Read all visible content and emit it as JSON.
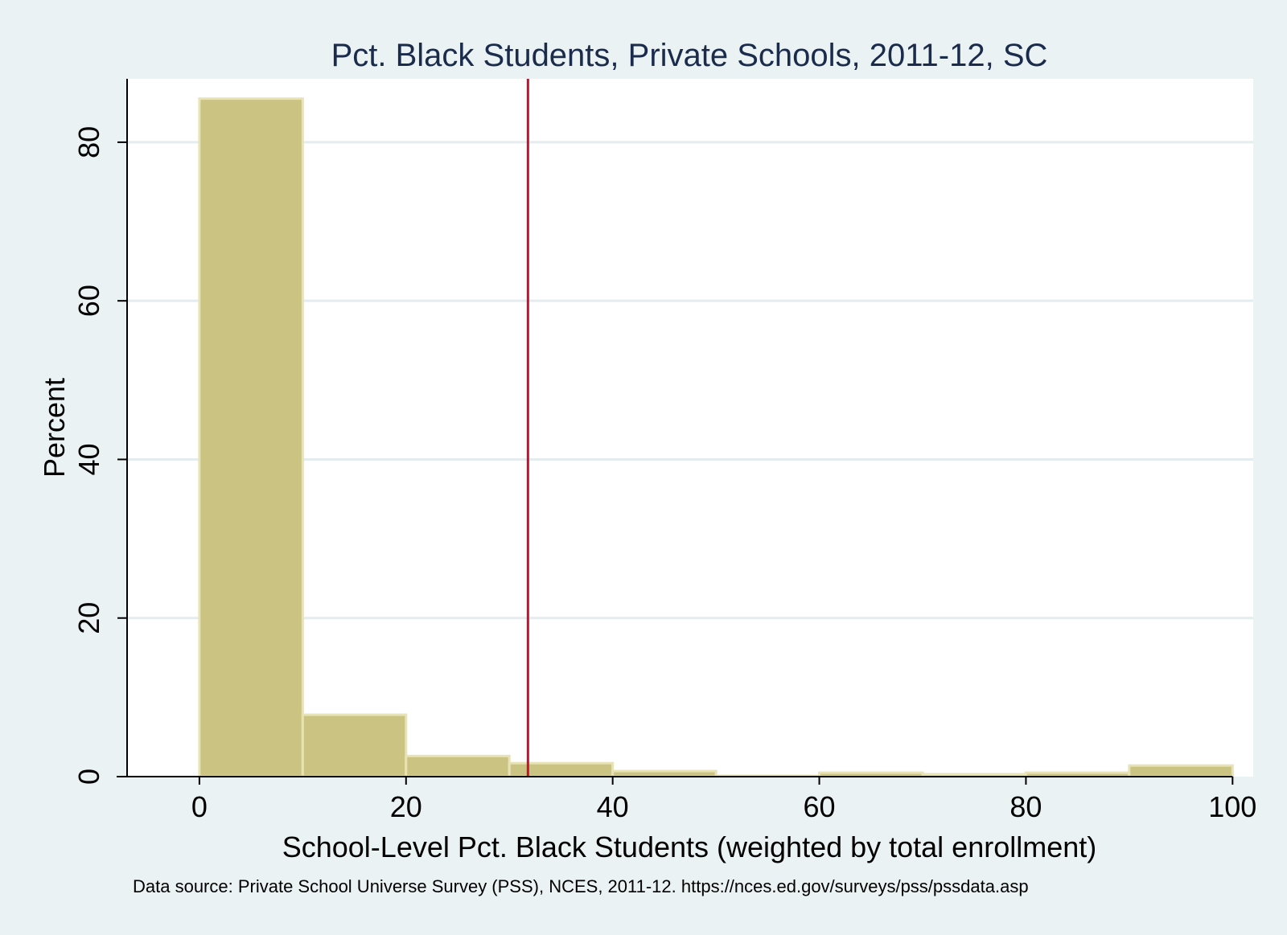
{
  "chart_data": {
    "type": "bar",
    "title": "Pct. Black Students, Private Schools, 2011-12, SC",
    "xlabel": "School-Level Pct. Black Students (weighted by total enrollment)",
    "ylabel": "Percent",
    "note": "Data source: Private School Universe Survey (PSS), NCES, 2011-12. https://nces.ed.gov/surveys/pss/pssdata.asp",
    "bin_edges": [
      0,
      10,
      20,
      30,
      40,
      50,
      60,
      70,
      80,
      90,
      100
    ],
    "values": [
      85.5,
      7.8,
      2.6,
      1.7,
      0.7,
      0.1,
      0.5,
      0.3,
      0.5,
      1.4
    ],
    "xlim": [
      -7,
      102
    ],
    "ylim": [
      0,
      88
    ],
    "xticks": [
      0,
      20,
      40,
      60,
      80,
      100
    ],
    "yticks": [
      0,
      20,
      40,
      60,
      80
    ],
    "reference_line_x": 31.8,
    "grid": true,
    "colors": {
      "bar": "#cbc381",
      "reference_line": "#c4122f",
      "background": "#eaf2f3",
      "plot_area": "#ffffff"
    }
  }
}
